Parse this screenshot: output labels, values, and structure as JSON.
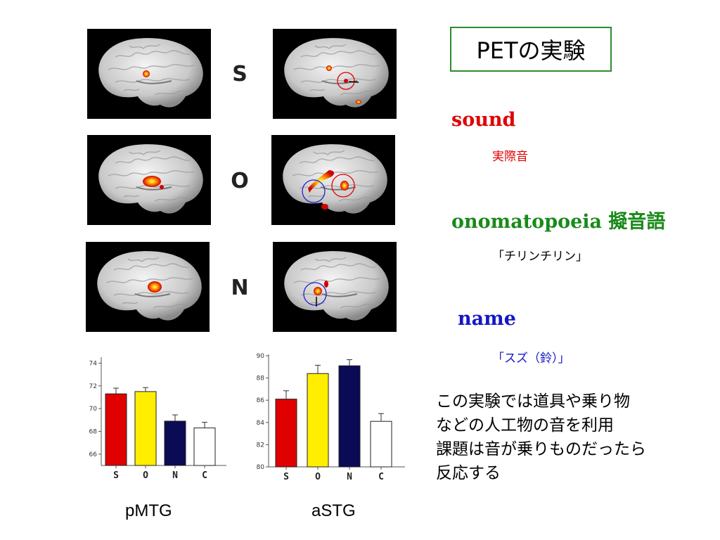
{
  "title": "PETの実験",
  "rows": [
    {
      "letter": "S"
    },
    {
      "letter": "O"
    },
    {
      "letter": "N"
    }
  ],
  "conditions": [
    {
      "name": "sound",
      "example": "実際音",
      "color": "#e00000"
    },
    {
      "name": "onomatopoeia 擬音語",
      "example": "「チリンチリン」",
      "color": "#1a8a1a"
    },
    {
      "name": "name",
      "example": "「スズ（鈴）」",
      "color": "#1616c8"
    }
  ],
  "description_lines": [
    "この実験では道具や乗り物",
    "などの人工物の音を利用",
    "課題は音が乗りものだったら",
    "反応する"
  ],
  "colors": {
    "S": "#e00000",
    "O": "#ffee00",
    "N": "#0a0a55",
    "C": "#ffffff",
    "title_border": "#2e8b2e",
    "marker_red": "#e00000",
    "marker_blue": "#2020d0"
  },
  "chart_data": [
    {
      "type": "bar",
      "region": "pMTG",
      "caption": "pMTG",
      "categories": [
        "S",
        "O",
        "N",
        "C"
      ],
      "values": [
        71.3,
        71.5,
        68.9,
        68.3
      ],
      "errors": [
        0.5,
        0.35,
        0.55,
        0.5
      ],
      "ylim": [
        65,
        74.4
      ],
      "yticks": [
        66,
        68,
        70,
        72,
        74
      ],
      "grid": false
    },
    {
      "type": "bar",
      "region": "aSTG",
      "caption": "aSTG",
      "categories": [
        "S",
        "O",
        "N",
        "C"
      ],
      "values": [
        86.1,
        88.4,
        89.1,
        84.1
      ],
      "errors": [
        0.75,
        0.75,
        0.55,
        0.7
      ],
      "ylim": [
        80,
        90
      ],
      "yticks": [
        80,
        82,
        84,
        86,
        88,
        90
      ],
      "grid": false
    }
  ]
}
